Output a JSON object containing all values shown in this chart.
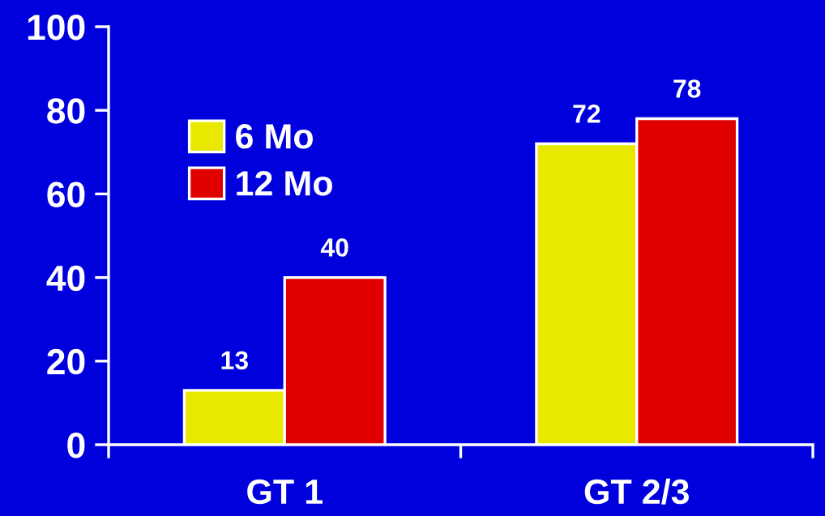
{
  "chart_data": {
    "type": "bar",
    "categories": [
      "GT 1",
      "GT 2/3"
    ],
    "series": [
      {
        "name": "6 Mo",
        "color": "#e8e800",
        "values": [
          13,
          72
        ]
      },
      {
        "name": "12 Mo",
        "color": "#e00000",
        "values": [
          40,
          78
        ]
      }
    ],
    "ylim": [
      0,
      100
    ],
    "yticks": [
      0,
      20,
      40,
      60,
      80,
      100
    ],
    "data_labels": true,
    "legend": "top left"
  }
}
